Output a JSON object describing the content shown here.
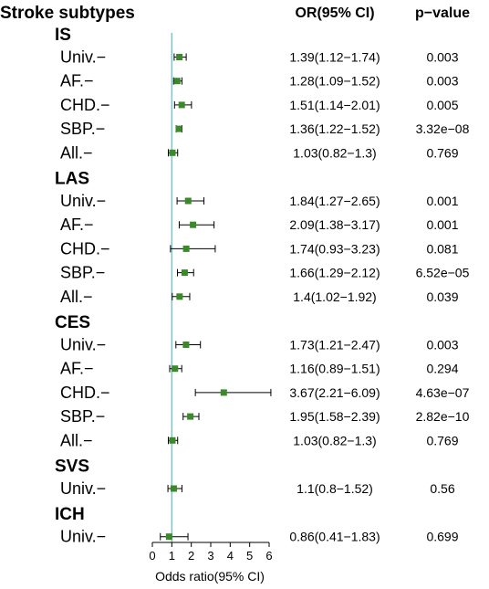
{
  "chart_data": {
    "type": "forest",
    "headers": {
      "left": "Stroke subtypes",
      "or": "OR(95% CI)",
      "p": "p−value"
    },
    "xlabel": "Odds ratio(95% CI)",
    "xlim": [
      0,
      6
    ],
    "xticks": [
      "0",
      "1",
      "2",
      "3",
      "4",
      "5",
      "6"
    ],
    "reference_line": 1,
    "colors": {
      "marker": "#3a8a2a",
      "reference": "#7ec3d3",
      "whisker": "#000000"
    },
    "groups": [
      {
        "name": "IS",
        "rows": [
          {
            "label": "Univ.−",
            "or": 1.39,
            "lo": 1.12,
            "hi": 1.74,
            "ci_text": "1.39(1.12−1.74)",
            "p": "0.003"
          },
          {
            "label": "AF.−",
            "or": 1.28,
            "lo": 1.09,
            "hi": 1.52,
            "ci_text": "1.28(1.09−1.52)",
            "p": "0.003"
          },
          {
            "label": "CHD.−",
            "or": 1.51,
            "lo": 1.14,
            "hi": 2.01,
            "ci_text": "1.51(1.14−2.01)",
            "p": "0.005"
          },
          {
            "label": "SBP.−",
            "or": 1.36,
            "lo": 1.22,
            "hi": 1.52,
            "ci_text": "1.36(1.22−1.52)",
            "p": "3.32e−08"
          },
          {
            "label": "All.−",
            "or": 1.03,
            "lo": 0.82,
            "hi": 1.3,
            "ci_text": "1.03(0.82−1.3)",
            "p": "0.769"
          }
        ]
      },
      {
        "name": "LAS",
        "rows": [
          {
            "label": "Univ.−",
            "or": 1.84,
            "lo": 1.27,
            "hi": 2.65,
            "ci_text": "1.84(1.27−2.65)",
            "p": "0.001"
          },
          {
            "label": "AF.−",
            "or": 2.09,
            "lo": 1.38,
            "hi": 3.17,
            "ci_text": "2.09(1.38−3.17)",
            "p": "0.001"
          },
          {
            "label": "CHD.−",
            "or": 1.74,
            "lo": 0.93,
            "hi": 3.23,
            "ci_text": "1.74(0.93−3.23)",
            "p": "0.081"
          },
          {
            "label": "SBP.−",
            "or": 1.66,
            "lo": 1.29,
            "hi": 2.12,
            "ci_text": "1.66(1.29−2.12)",
            "p": "6.52e−05"
          },
          {
            "label": "All.−",
            "or": 1.4,
            "lo": 1.02,
            "hi": 1.92,
            "ci_text": "1.4(1.02−1.92)",
            "p": "0.039"
          }
        ]
      },
      {
        "name": "CES",
        "rows": [
          {
            "label": "Univ.−",
            "or": 1.73,
            "lo": 1.21,
            "hi": 2.47,
            "ci_text": "1.73(1.21−2.47)",
            "p": "0.003"
          },
          {
            "label": "AF.−",
            "or": 1.16,
            "lo": 0.89,
            "hi": 1.51,
            "ci_text": "1.16(0.89−1.51)",
            "p": "0.294"
          },
          {
            "label": "CHD.−",
            "or": 3.67,
            "lo": 2.21,
            "hi": 6.09,
            "ci_text": "3.67(2.21−6.09)",
            "p": "4.63e−07"
          },
          {
            "label": "SBP.−",
            "or": 1.95,
            "lo": 1.58,
            "hi": 2.39,
            "ci_text": "1.95(1.58−2.39)",
            "p": "2.82e−10"
          },
          {
            "label": "All.−",
            "or": 1.03,
            "lo": 0.82,
            "hi": 1.3,
            "ci_text": "1.03(0.82−1.3)",
            "p": "0.769"
          }
        ]
      },
      {
        "name": "SVS",
        "rows": [
          {
            "label": "Univ.−",
            "or": 1.1,
            "lo": 0.8,
            "hi": 1.52,
            "ci_text": "1.1(0.8−1.52)",
            "p": "0.56"
          }
        ]
      },
      {
        "name": "ICH",
        "rows": [
          {
            "label": "Univ.−",
            "or": 0.86,
            "lo": 0.41,
            "hi": 1.83,
            "ci_text": "0.86(0.41−1.83)",
            "p": "0.699"
          }
        ]
      }
    ]
  }
}
